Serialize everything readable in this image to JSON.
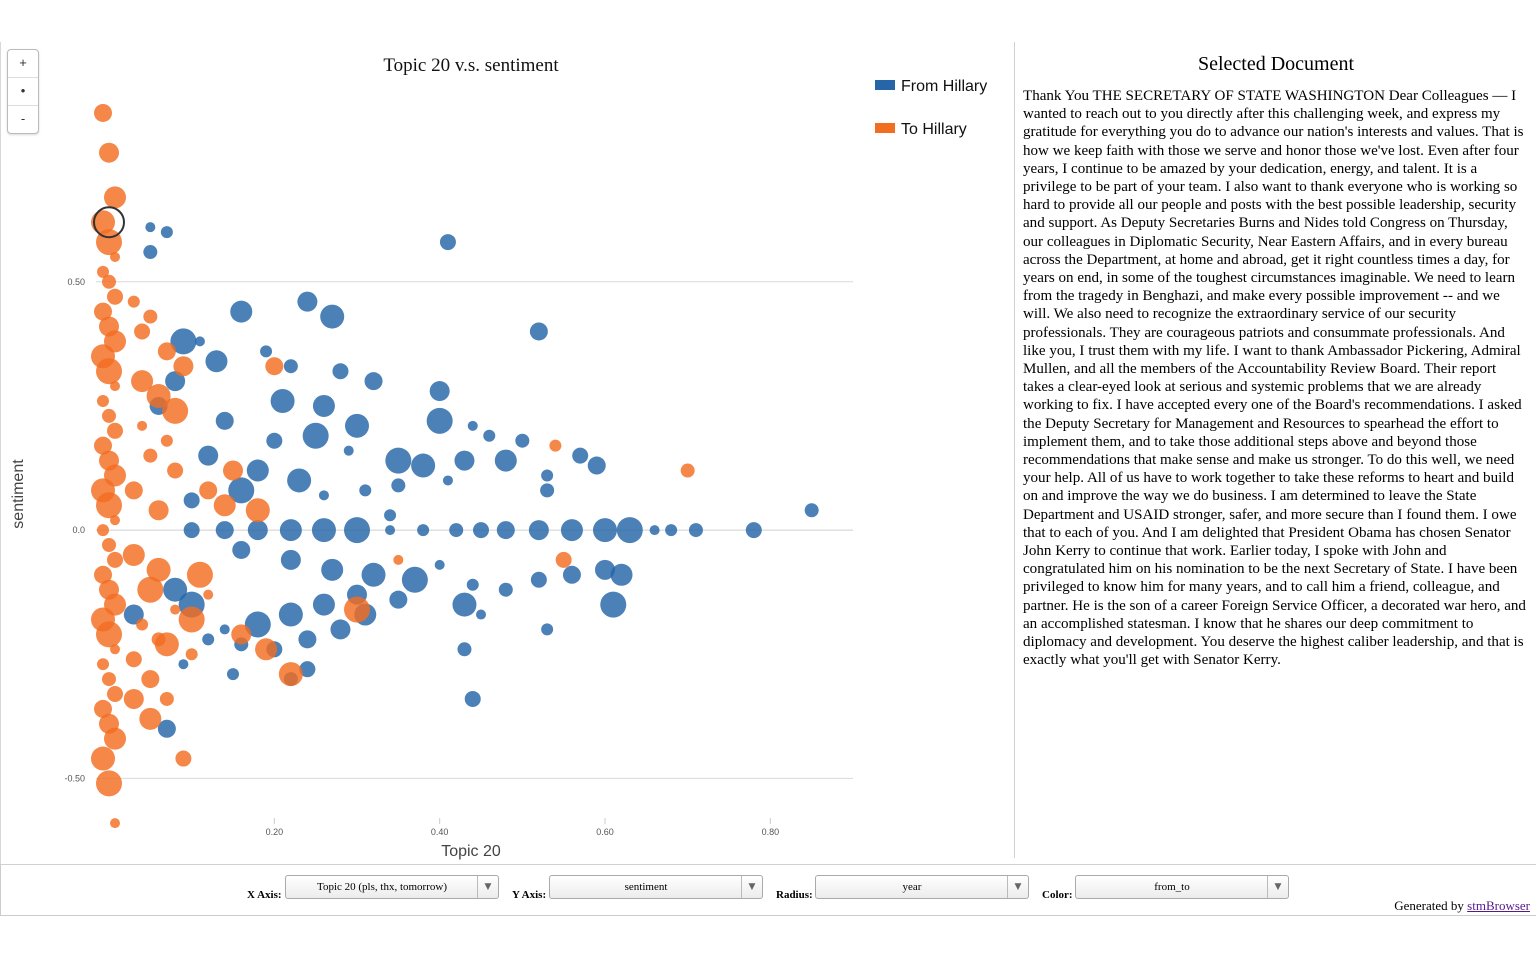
{
  "chart_data": {
    "type": "scatter",
    "title": "Topic 20 v.s. sentiment",
    "xlabel": "Topic 20",
    "ylabel": "sentiment",
    "xlim": [
      0.0,
      0.9
    ],
    "ylim": [
      -0.62,
      0.85
    ],
    "xticks": [
      {
        "v": 0.2,
        "label": "0.20"
      },
      {
        "v": 0.4,
        "label": "0.40"
      },
      {
        "v": 0.6,
        "label": "0.60"
      },
      {
        "v": 0.8,
        "label": "0.80"
      }
    ],
    "yticks": [
      {
        "v": 0.5,
        "label": "0.50"
      },
      {
        "v": 0.0,
        "label": "0.0"
      },
      {
        "v": -0.5,
        "label": "-0.50"
      }
    ],
    "grid": "horizontal",
    "legend_position": "top-right",
    "series": [
      {
        "name": "From Hillary",
        "color": "#2565a8",
        "points": [
          [
            0.05,
            0.61
          ],
          [
            0.07,
            0.6
          ],
          [
            0.05,
            0.56
          ],
          [
            0.41,
            0.58
          ],
          [
            0.52,
            0.4
          ],
          [
            0.24,
            0.46
          ],
          [
            0.16,
            0.44
          ],
          [
            0.27,
            0.43
          ],
          [
            0.09,
            0.38
          ],
          [
            0.11,
            0.38
          ],
          [
            0.19,
            0.36
          ],
          [
            0.22,
            0.33
          ],
          [
            0.28,
            0.32
          ],
          [
            0.32,
            0.3
          ],
          [
            0.4,
            0.28
          ],
          [
            0.26,
            0.25
          ],
          [
            0.3,
            0.21
          ],
          [
            0.4,
            0.22
          ],
          [
            0.44,
            0.21
          ],
          [
            0.46,
            0.19
          ],
          [
            0.5,
            0.18
          ],
          [
            0.57,
            0.15
          ],
          [
            0.59,
            0.13
          ],
          [
            0.43,
            0.14
          ],
          [
            0.48,
            0.14
          ],
          [
            0.38,
            0.13
          ],
          [
            0.35,
            0.14
          ],
          [
            0.41,
            0.1
          ],
          [
            0.53,
            0.11
          ],
          [
            0.53,
            0.08
          ],
          [
            0.2,
            0.18
          ],
          [
            0.14,
            0.22
          ],
          [
            0.12,
            0.15
          ],
          [
            0.18,
            0.12
          ],
          [
            0.23,
            0.1
          ],
          [
            0.16,
            0.08
          ],
          [
            0.26,
            0.07
          ],
          [
            0.31,
            0.08
          ],
          [
            0.35,
            0.09
          ],
          [
            0.1,
            0.06
          ],
          [
            0.06,
            0.25
          ],
          [
            0.08,
            0.3
          ],
          [
            0.13,
            0.34
          ],
          [
            0.21,
            0.26
          ],
          [
            0.25,
            0.19
          ],
          [
            0.29,
            0.16
          ],
          [
            0.34,
            0.03
          ],
          [
            0.85,
            0.04
          ],
          [
            0.1,
            0.0
          ],
          [
            0.14,
            0.0
          ],
          [
            0.18,
            0.0
          ],
          [
            0.22,
            0.0
          ],
          [
            0.26,
            0.0
          ],
          [
            0.3,
            0.0
          ],
          [
            0.34,
            0.0
          ],
          [
            0.38,
            0.0
          ],
          [
            0.42,
            0.0
          ],
          [
            0.45,
            0.0
          ],
          [
            0.48,
            0.0
          ],
          [
            0.52,
            0.0
          ],
          [
            0.56,
            0.0
          ],
          [
            0.6,
            0.0
          ],
          [
            0.63,
            0.0
          ],
          [
            0.66,
            0.0
          ],
          [
            0.68,
            0.0
          ],
          [
            0.71,
            0.0
          ],
          [
            0.78,
            0.0
          ],
          [
            0.16,
            -0.04
          ],
          [
            0.22,
            -0.06
          ],
          [
            0.27,
            -0.08
          ],
          [
            0.32,
            -0.09
          ],
          [
            0.37,
            -0.1
          ],
          [
            0.4,
            -0.07
          ],
          [
            0.44,
            -0.11
          ],
          [
            0.48,
            -0.12
          ],
          [
            0.52,
            -0.1
          ],
          [
            0.56,
            -0.09
          ],
          [
            0.6,
            -0.08
          ],
          [
            0.62,
            -0.09
          ],
          [
            0.43,
            -0.15
          ],
          [
            0.61,
            -0.15
          ],
          [
            0.45,
            -0.17
          ],
          [
            0.53,
            -0.2
          ],
          [
            0.43,
            -0.24
          ],
          [
            0.44,
            -0.34
          ],
          [
            0.35,
            -0.14
          ],
          [
            0.3,
            -0.13
          ],
          [
            0.26,
            -0.15
          ],
          [
            0.22,
            -0.17
          ],
          [
            0.18,
            -0.19
          ],
          [
            0.14,
            -0.2
          ],
          [
            0.12,
            -0.22
          ],
          [
            0.16,
            -0.23
          ],
          [
            0.2,
            -0.24
          ],
          [
            0.24,
            -0.22
          ],
          [
            0.28,
            -0.2
          ],
          [
            0.31,
            -0.17
          ],
          [
            0.08,
            -0.12
          ],
          [
            0.1,
            -0.15
          ],
          [
            0.09,
            -0.27
          ],
          [
            0.15,
            -0.29
          ],
          [
            0.22,
            -0.3
          ],
          [
            0.24,
            -0.28
          ],
          [
            0.07,
            -0.4
          ],
          [
            0.03,
            -0.17
          ]
        ]
      },
      {
        "name": "To Hillary",
        "color": "#f36d21",
        "points": [
          [
            0.0,
            0.84
          ],
          [
            0.0,
            0.76
          ],
          [
            0.0,
            0.67
          ],
          [
            0.0,
            0.62
          ],
          [
            0.0,
            0.58
          ],
          [
            0.0,
            0.55
          ],
          [
            0.0,
            0.52
          ],
          [
            0.0,
            0.5
          ],
          [
            0.0,
            0.47
          ],
          [
            0.0,
            0.44
          ],
          [
            0.0,
            0.41
          ],
          [
            0.0,
            0.38
          ],
          [
            0.0,
            0.35
          ],
          [
            0.0,
            0.32
          ],
          [
            0.0,
            0.29
          ],
          [
            0.0,
            0.26
          ],
          [
            0.0,
            0.23
          ],
          [
            0.0,
            0.2
          ],
          [
            0.0,
            0.17
          ],
          [
            0.0,
            0.14
          ],
          [
            0.0,
            0.11
          ],
          [
            0.0,
            0.08
          ],
          [
            0.0,
            0.05
          ],
          [
            0.0,
            0.02
          ],
          [
            0.0,
            0.0
          ],
          [
            0.0,
            -0.03
          ],
          [
            0.0,
            -0.06
          ],
          [
            0.0,
            -0.09
          ],
          [
            0.0,
            -0.12
          ],
          [
            0.0,
            -0.15
          ],
          [
            0.0,
            -0.18
          ],
          [
            0.0,
            -0.21
          ],
          [
            0.0,
            -0.24
          ],
          [
            0.0,
            -0.27
          ],
          [
            0.0,
            -0.3
          ],
          [
            0.0,
            -0.33
          ],
          [
            0.0,
            -0.36
          ],
          [
            0.0,
            -0.39
          ],
          [
            0.0,
            -0.42
          ],
          [
            0.0,
            -0.46
          ],
          [
            0.0,
            -0.51
          ],
          [
            0.0,
            -0.59
          ],
          [
            0.03,
            0.46
          ],
          [
            0.05,
            0.43
          ],
          [
            0.04,
            0.4
          ],
          [
            0.07,
            0.36
          ],
          [
            0.09,
            0.33
          ],
          [
            0.04,
            0.3
          ],
          [
            0.06,
            0.27
          ],
          [
            0.08,
            0.24
          ],
          [
            0.04,
            0.21
          ],
          [
            0.07,
            0.18
          ],
          [
            0.05,
            0.15
          ],
          [
            0.08,
            0.12
          ],
          [
            0.03,
            0.08
          ],
          [
            0.06,
            0.04
          ],
          [
            0.03,
            -0.05
          ],
          [
            0.06,
            -0.08
          ],
          [
            0.05,
            -0.12
          ],
          [
            0.08,
            -0.16
          ],
          [
            0.04,
            -0.19
          ],
          [
            0.06,
            -0.22
          ],
          [
            0.03,
            -0.26
          ],
          [
            0.05,
            -0.3
          ],
          [
            0.03,
            -0.34
          ],
          [
            0.05,
            -0.38
          ],
          [
            0.07,
            -0.23
          ],
          [
            0.1,
            -0.18
          ],
          [
            0.12,
            -0.13
          ],
          [
            0.1,
            -0.25
          ],
          [
            0.07,
            -0.34
          ],
          [
            0.09,
            -0.46
          ],
          [
            0.2,
            0.33
          ],
          [
            0.16,
            -0.21
          ],
          [
            0.19,
            -0.24
          ],
          [
            0.22,
            -0.29
          ],
          [
            0.3,
            -0.16
          ],
          [
            0.35,
            -0.06
          ],
          [
            0.54,
            0.17
          ],
          [
            0.7,
            0.12
          ],
          [
            0.55,
            -0.06
          ],
          [
            0.12,
            0.08
          ],
          [
            0.15,
            0.12
          ],
          [
            0.14,
            0.05
          ],
          [
            0.18,
            0.04
          ],
          [
            0.11,
            -0.09
          ]
        ]
      }
    ]
  },
  "zoom": {
    "plus": "+",
    "reset": "•",
    "minus": "-"
  },
  "doc": {
    "title": "Selected Document",
    "text": "Thank You THE SECRETARY OF STATE WASHINGTON Dear Colleagues — I wanted to reach out to you directly after this challenging week, and express my gratitude for everything you do to advance our nation's interests and values. That is how we keep faith with those we serve and honor those we've lost. Even after four years, I continue to be amazed by your dedication, energy, and talent. It is a privilege to be part of your team. I also want to thank everyone who is working so hard to provide all our people and posts with the best possible leadership, security and support. As Deputy Secretaries Burns and Nides told Congress on Thursday, our colleagues in Diplomatic Security, Near Eastern Affairs, and in every bureau across the Department, at home and abroad, get it right countless times a day, for years on end, in some of the toughest circumstances imaginable. We need to learn from the tragedy in Benghazi, and make every possible improvement -- and we will. We also need to recognize the extraordinary service of our security professionals. They are courageous patriots and consummate professionals. And like you, I trust them with my life. I want to thank Ambassador Pickering, Admiral Mullen, and all the members of the Accountability Review Board. Their report takes a clear-eyed look at serious and systemic problems that we are already working to fix. I have accepted every one of the Board's recommendations. I asked the Deputy Secretary for Management and Resources to spearhead the effort to implement them, and to take those additional steps above and beyond those recommendations that make sense and make us stronger. To do this well, we need your help. All of us have to work together to take these reforms to heart and build on and improve the way we do business. I am determined to leave the State Department and USAID stronger, safer, and more secure than I found them. I owe that to each of you. And I am delighted that President Obama has chosen Senator John Kerry to continue that work. Earlier today, I spoke with John and congratulated him on his nomination to be the next Secretary of State. I have been privileged to know him for many years, and to call him a friend, colleague, and partner. He is the son of a career Foreign Service Officer, a decorated war hero, and an accomplished statesman. I know that he shares our deep commitment to diplomacy and development. You deserve the highest caliber leadership, and that is exactly what you'll get with Senator Kerry."
  },
  "controls": {
    "x_label": "X Axis:",
    "x_value": "Topic 20 (pls, thx, tomorrow)",
    "y_label": "Y Axis:",
    "y_value": "sentiment",
    "r_label": "Radius:",
    "r_value": "year",
    "c_label": "Color:",
    "c_value": "from_to",
    "arrow": "▼"
  },
  "footer": {
    "prefix": "Generated by ",
    "link": "stmBrowser"
  }
}
